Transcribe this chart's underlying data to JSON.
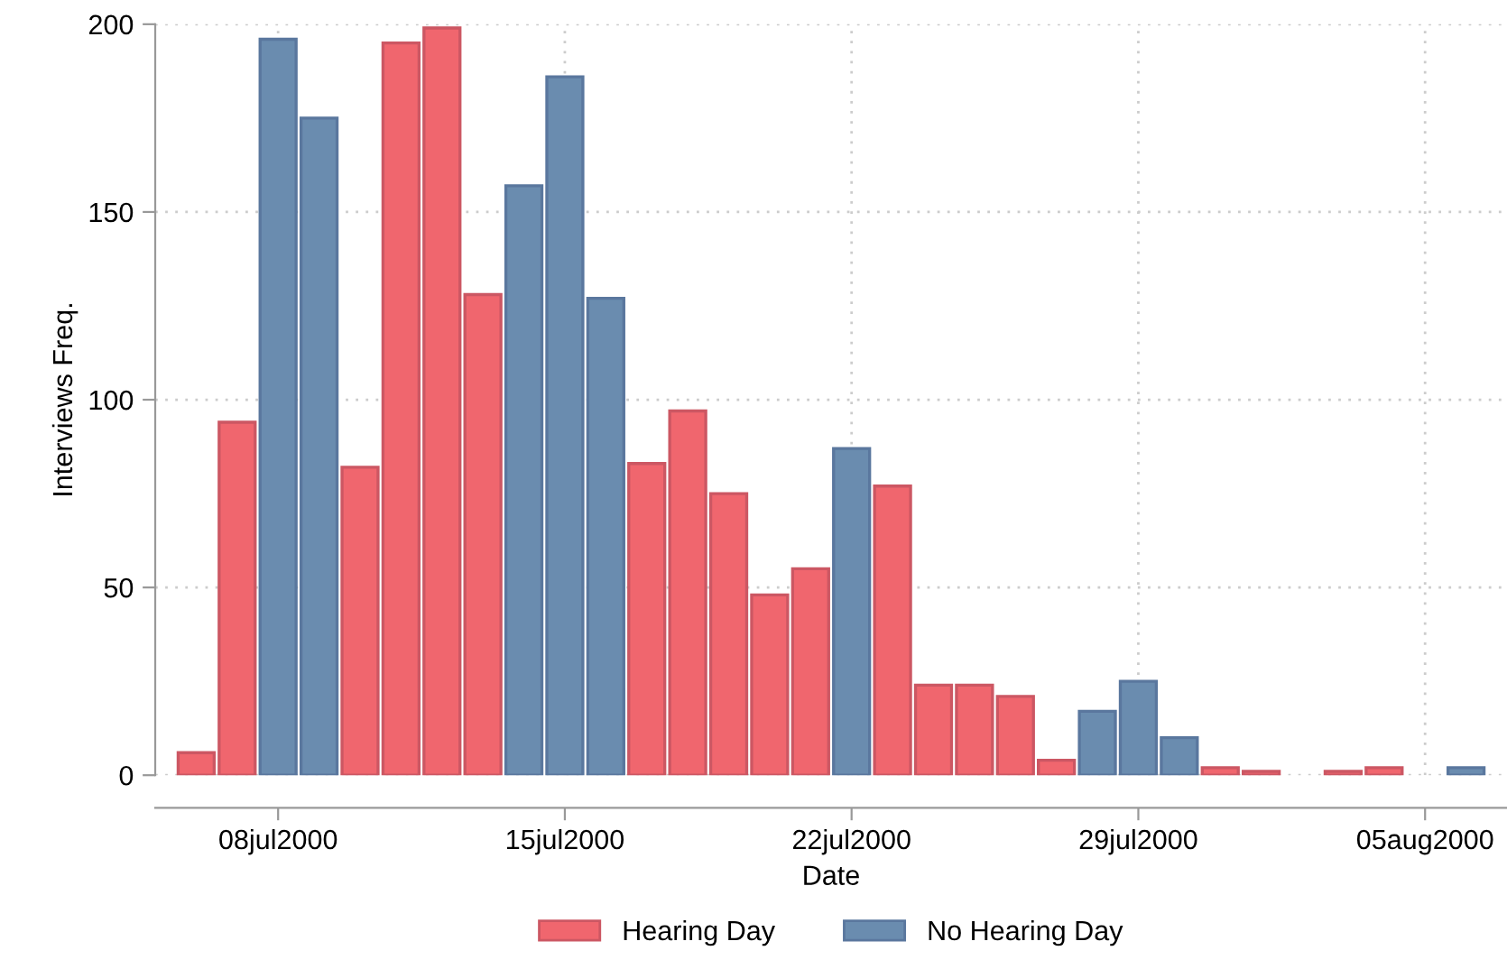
{
  "chart_data": {
    "type": "bar",
    "xlabel": "Date",
    "ylabel": "Interviews Freq.",
    "x": [
      "2000-07-06",
      "2000-07-07",
      "2000-07-08",
      "2000-07-09",
      "2000-07-10",
      "2000-07-11",
      "2000-07-12",
      "2000-07-13",
      "2000-07-14",
      "2000-07-15",
      "2000-07-16",
      "2000-07-17",
      "2000-07-18",
      "2000-07-19",
      "2000-07-20",
      "2000-07-21",
      "2000-07-22",
      "2000-07-23",
      "2000-07-24",
      "2000-07-25",
      "2000-07-26",
      "2000-07-27",
      "2000-07-28",
      "2000-07-29",
      "2000-07-30",
      "2000-07-31",
      "2000-08-01",
      "2000-08-02",
      "2000-08-03",
      "2000-08-04",
      "2000-08-05",
      "2000-08-06"
    ],
    "series": [
      {
        "name": "Hearing Day",
        "color": "#f0666e",
        "values": [
          6,
          94,
          null,
          null,
          82,
          195,
          199,
          128,
          null,
          null,
          null,
          83,
          97,
          75,
          48,
          55,
          null,
          77,
          24,
          24,
          21,
          4,
          null,
          null,
          null,
          2,
          1,
          null,
          1,
          2,
          null,
          null
        ]
      },
      {
        "name": "No Hearing Day",
        "color": "#6a8caf",
        "values": [
          null,
          null,
          196,
          175,
          null,
          null,
          null,
          null,
          157,
          186,
          127,
          null,
          null,
          null,
          null,
          null,
          87,
          null,
          null,
          null,
          null,
          null,
          17,
          25,
          10,
          null,
          null,
          null,
          null,
          null,
          null,
          2
        ]
      }
    ],
    "xlim": [
      "2000-07-05",
      "2000-08-07"
    ],
    "xticks": [
      {
        "value": "2000-07-08",
        "label": "08jul2000"
      },
      {
        "value": "2000-07-15",
        "label": "15jul2000"
      },
      {
        "value": "2000-07-22",
        "label": "22jul2000"
      },
      {
        "value": "2000-07-29",
        "label": "29jul2000"
      },
      {
        "value": "2000-08-05",
        "label": "05aug2000"
      }
    ],
    "ylim": [
      0,
      200
    ],
    "yticks": [
      0,
      50,
      100,
      150,
      200
    ],
    "grid": true,
    "legend": "bottom"
  }
}
